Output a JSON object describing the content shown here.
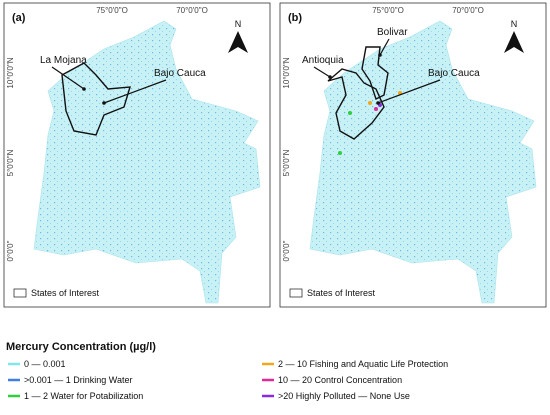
{
  "panels": [
    {
      "label": "(a)",
      "lon_labels": [
        "75°0'0\"O",
        "70°0'0\"O"
      ],
      "lat_labels": [
        "10°0'0\"N",
        "5°0'0\"N",
        "0°0'0\""
      ],
      "north": "N",
      "annotations": [
        "La Mojana",
        "Bajo Cauca"
      ],
      "box_legend": "States of Interest"
    },
    {
      "label": "(b)",
      "lon_labels": [
        "75°0'0\"O",
        "70°0'0\"O"
      ],
      "lat_labels": [
        "10°0'0\"N",
        "5°0'0\"N",
        "0°0'0\""
      ],
      "north": "N",
      "annotations": [
        "Antioquia",
        "Bolivar",
        "Bajo Cauca"
      ],
      "box_legend": "States of Interest"
    }
  ],
  "legend": {
    "title": "Mercury Concentration (µg/l)",
    "items": [
      {
        "label": "0 — 0.001",
        "color": "#7fe6ee"
      },
      {
        "label": ">0.001 — 1 Drinking Water",
        "color": "#3f7fe0"
      },
      {
        "label": "1 — 2 Water for Potabilization",
        "color": "#2fcf3f"
      },
      {
        "label": "2 — 10 Fishing and Aquatic Life Protection",
        "color": "#f2a81d"
      },
      {
        "label": "10 — 20 Control Concentration",
        "color": "#e02a9a"
      },
      {
        "label": ">20 Highly Polluted — None Use",
        "color": "#8a2be2"
      }
    ]
  }
}
